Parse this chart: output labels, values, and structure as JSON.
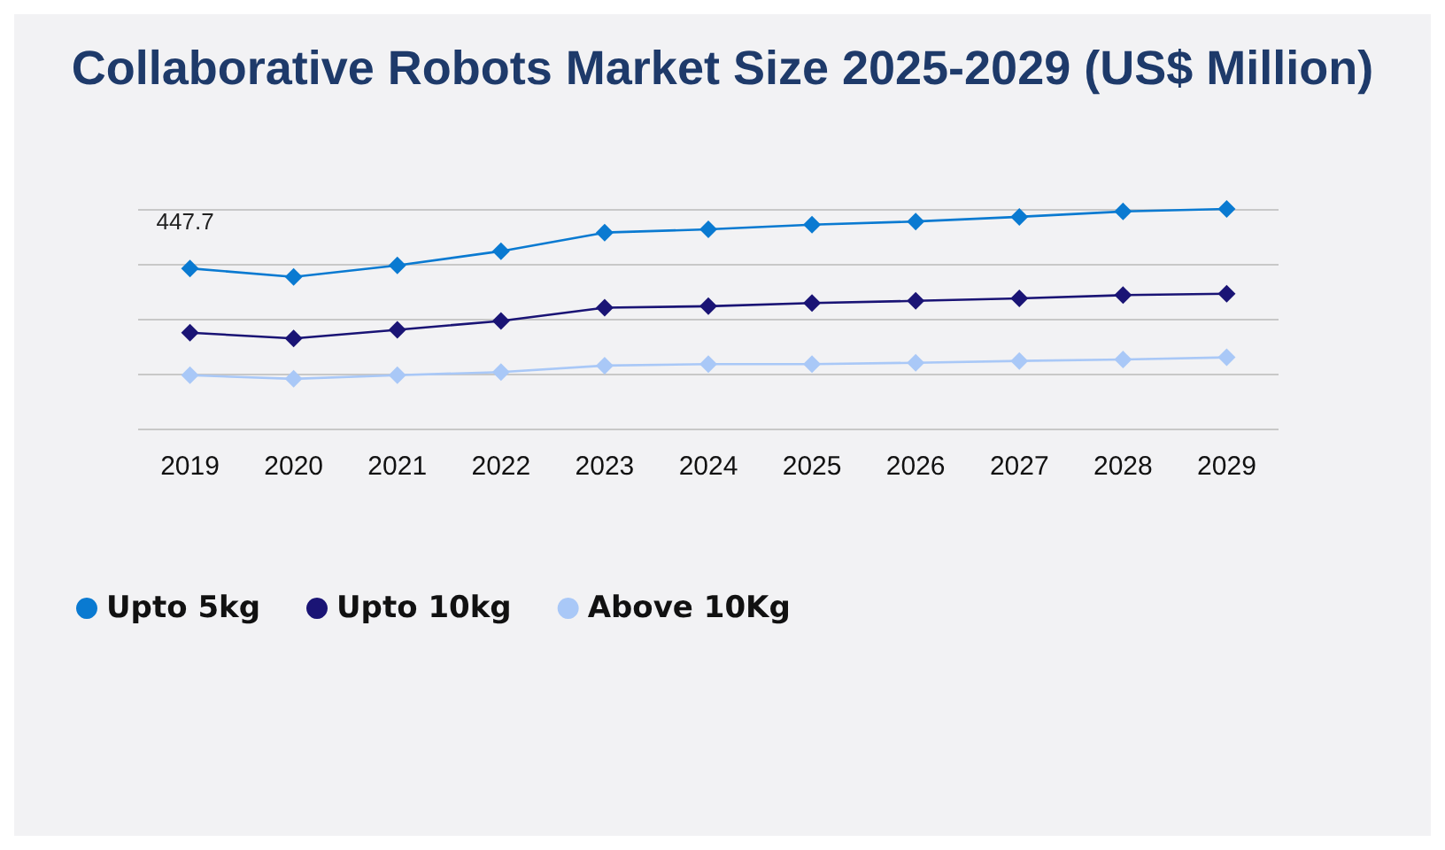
{
  "chart_data": {
    "type": "line",
    "title": "Collaborative Robots Market Size 2025-2029 (US$ Million)",
    "categories": [
      "2019",
      "2020",
      "2021",
      "2022",
      "2023",
      "2024",
      "2025",
      "2026",
      "2027",
      "2028",
      "2029"
    ],
    "ylim": [
      0,
      614
    ],
    "tick_labels": "x",
    "grid": "y",
    "legend": "bottom left",
    "marker": "diamond",
    "series": [
      {
        "name": "Upto 5kg",
        "color": "#0a7ad1",
        "values": [
          447.7,
          424,
          456,
          496,
          548,
          557,
          570,
          579,
          592,
          607,
          614
        ],
        "value_labels": [
          "447.7",
          null,
          null,
          null,
          null,
          null,
          null,
          null,
          null,
          null,
          null
        ]
      },
      {
        "name": "Upto 10kg",
        "color": "#1a1475",
        "values": [
          268,
          252,
          276,
          301,
          338,
          342,
          351,
          357,
          364,
          373,
          377
        ]
      },
      {
        "name": "Above 10Kg",
        "color": "#a9c8f7",
        "values": [
          149,
          139,
          149,
          158,
          176,
          180,
          180,
          184,
          189,
          193,
          199
        ]
      }
    ]
  }
}
